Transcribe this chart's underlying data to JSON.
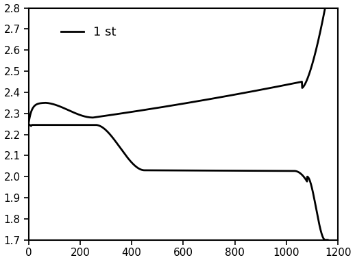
{
  "title": "",
  "xlabel": "",
  "ylabel": "",
  "xlim": [
    0,
    1200
  ],
  "ylim": [
    1.7,
    2.8
  ],
  "xticks": [
    0,
    200,
    400,
    600,
    800,
    1000,
    1200
  ],
  "yticks": [
    1.7,
    1.8,
    1.9,
    2.0,
    2.1,
    2.2,
    2.3,
    2.4,
    2.5,
    2.6,
    2.7,
    2.8
  ],
  "legend_label": "1 st",
  "line_color": "#000000",
  "line_width": 2.0,
  "background_color": "#ffffff"
}
